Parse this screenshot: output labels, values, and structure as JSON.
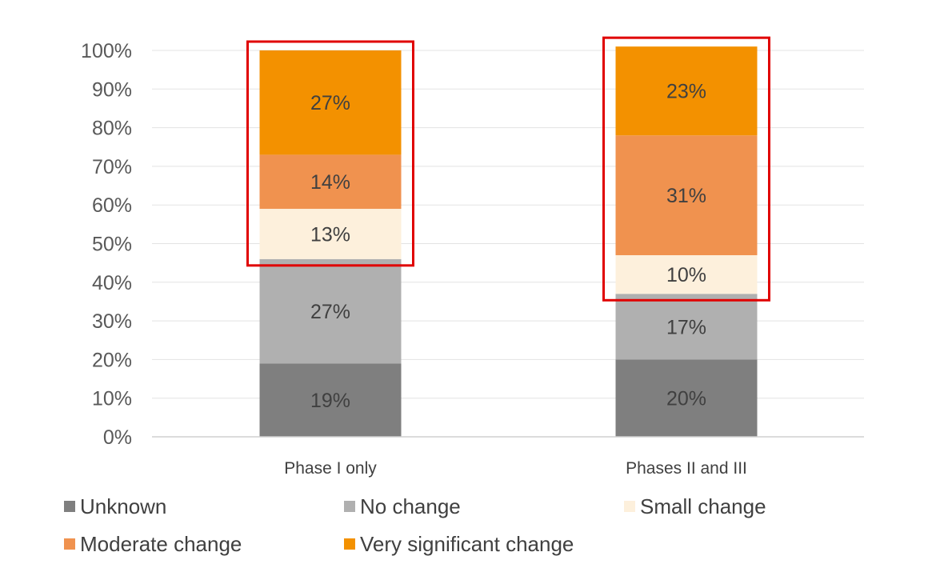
{
  "chart_data": {
    "type": "bar",
    "stacked": true,
    "title": "",
    "xlabel": "",
    "ylabel": "",
    "ylim": [
      0,
      100
    ],
    "y_ticks": [
      "0%",
      "10%",
      "20%",
      "30%",
      "40%",
      "50%",
      "60%",
      "70%",
      "80%",
      "90%",
      "100%"
    ],
    "grid": true,
    "legend_position": "bottom",
    "categories": [
      "Phase I only",
      "Phases II and III"
    ],
    "series": [
      {
        "name": "Unknown",
        "color": "#7f7f7f",
        "values": [
          19,
          20
        ],
        "labels": [
          "19%",
          "20%"
        ]
      },
      {
        "name": "No change",
        "color": "#b0b0b0",
        "values": [
          27,
          17
        ],
        "labels": [
          "27%",
          "17%"
        ]
      },
      {
        "name": "Small change",
        "color": "#fdf0dc",
        "values": [
          13,
          10
        ],
        "labels": [
          "13%",
          "10%"
        ]
      },
      {
        "name": "Moderate change",
        "color": "#f0924f",
        "values": [
          14,
          31
        ],
        "labels": [
          "14%",
          "31%"
        ]
      },
      {
        "name": "Very significant change",
        "color": "#f39100",
        "values": [
          27,
          23
        ],
        "labels": [
          "27%",
          "23%"
        ]
      }
    ],
    "highlight_boxes": [
      {
        "category": "Phase I only",
        "from_series": "Small change",
        "to_series": "Very significant change",
        "color": "#e00000"
      },
      {
        "category": "Phases II and III",
        "from_series": "Small change",
        "to_series": "Very significant change",
        "color": "#e00000"
      }
    ]
  }
}
